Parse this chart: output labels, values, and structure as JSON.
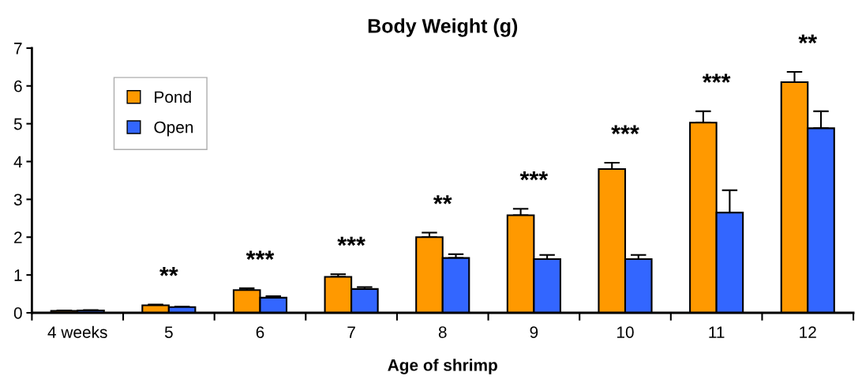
{
  "chart_data": {
    "type": "bar",
    "title": "Body Weight (g)",
    "xlabel": "Age of shrimp",
    "categories": [
      "4 weeks",
      "5",
      "6",
      "7",
      "8",
      "9",
      "10",
      "11",
      "12"
    ],
    "series": [
      {
        "name": "Pond",
        "color": "#ff9900",
        "values": [
          0.05,
          0.2,
          0.6,
          0.95,
          2.0,
          2.58,
          3.8,
          5.03,
          6.1
        ],
        "errors": [
          [
            0.05,
            0.06
          ],
          [
            0.2,
            0.22
          ],
          [
            0.6,
            0.65
          ],
          [
            0.95,
            1.02
          ],
          [
            2.0,
            2.12
          ],
          [
            2.58,
            2.75
          ],
          [
            3.8,
            3.97
          ],
          [
            5.03,
            5.33
          ],
          [
            6.1,
            6.37
          ]
        ]
      },
      {
        "name": "Open",
        "color": "#3366ff",
        "values": [
          0.06,
          0.15,
          0.4,
          0.63,
          1.45,
          1.42,
          1.42,
          2.65,
          4.88
        ],
        "errors": [
          [
            0.06,
            0.07
          ],
          [
            0.15,
            0.16
          ],
          [
            0.4,
            0.44
          ],
          [
            0.63,
            0.68
          ],
          [
            1.45,
            1.55
          ],
          [
            1.42,
            1.53
          ],
          [
            1.42,
            1.53
          ],
          [
            2.65,
            3.24
          ],
          [
            4.88,
            5.33
          ]
        ]
      }
    ],
    "annotations": [
      "**",
      "***",
      "***",
      "**",
      "***",
      "***",
      "***",
      "**"
    ],
    "ylim": [
      0,
      7
    ],
    "yticks": [
      0,
      1,
      2,
      3,
      4,
      5,
      6,
      7
    ],
    "grid": false,
    "legend": "top left"
  }
}
